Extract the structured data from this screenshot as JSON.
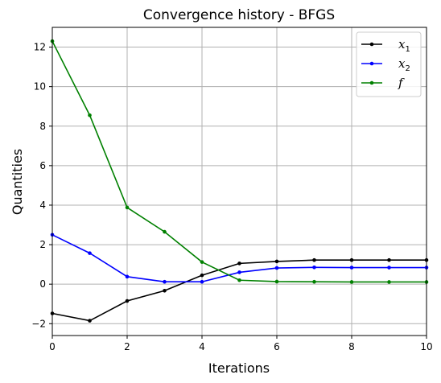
{
  "chart_data": {
    "type": "line",
    "title": "Convergence history - BFGS",
    "xlabel": "Iterations",
    "ylabel": "Quantities",
    "xlim": [
      0,
      10
    ],
    "ylim": [
      -2.6,
      13.0
    ],
    "xticks": [
      0,
      2,
      4,
      6,
      8,
      10
    ],
    "yticks": [
      -2,
      0,
      2,
      4,
      6,
      8,
      10,
      12
    ],
    "grid": true,
    "legend_position": "top-right",
    "x": [
      0,
      1,
      2,
      3,
      4,
      5,
      6,
      7,
      8,
      9,
      10
    ],
    "series": [
      {
        "name": "x",
        "subscript": "1",
        "color": "#000000",
        "marker": "point",
        "values": [
          -1.48,
          -1.85,
          -0.85,
          -0.33,
          0.45,
          1.05,
          1.15,
          1.22,
          1.22,
          1.22,
          1.22
        ]
      },
      {
        "name": "x",
        "subscript": "2",
        "color": "#0000ff",
        "marker": "point",
        "values": [
          2.5,
          1.57,
          0.38,
          0.12,
          0.12,
          0.6,
          0.82,
          0.85,
          0.84,
          0.84,
          0.84
        ]
      },
      {
        "name": "f",
        "subscript": "",
        "color": "#008000",
        "marker": "point",
        "values": [
          12.3,
          8.55,
          3.88,
          2.65,
          1.12,
          0.2,
          0.13,
          0.12,
          0.11,
          0.11,
          0.11
        ]
      }
    ]
  }
}
